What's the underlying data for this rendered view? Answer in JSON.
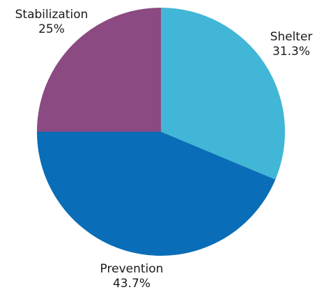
{
  "chart_data": {
    "type": "pie",
    "slices": [
      {
        "label": "Shelter",
        "value": 31.3,
        "value_label": "31.3%",
        "color": "#41b6d6"
      },
      {
        "label": "Prevention",
        "value": 43.7,
        "value_label": "43.7%",
        "color": "#0a6db7"
      },
      {
        "label": "Stabilization",
        "value": 25,
        "value_label": "25%",
        "color": "#8b4a82"
      }
    ],
    "start_angle": "top (12 o'clock)",
    "direction": "clockwise",
    "legend": "none (labels beside slices)"
  }
}
